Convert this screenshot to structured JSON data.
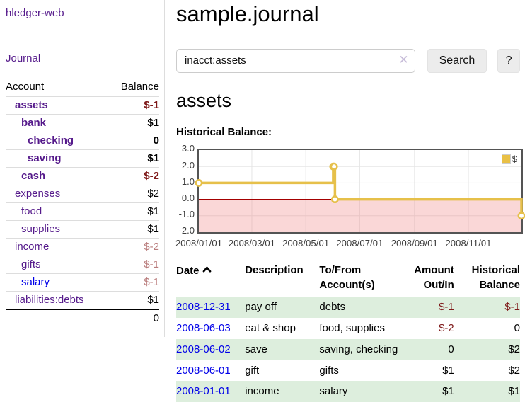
{
  "app": {
    "brand": "hledger-web",
    "nav": {
      "journal": "Journal"
    }
  },
  "colors": {
    "link_purple": "#551a8b",
    "link_blue": "#0000e8",
    "negative_strong": "#7e1919",
    "negative_muted": "#b97c7c",
    "row_green": "#ddeedd",
    "chart_line": "#e6c04a",
    "chart_negative_fill": "rgba(240,140,140,0.35)",
    "chart_zero_line": "#a40000",
    "grid_line": "#e5e5e5"
  },
  "sidebar": {
    "headers": {
      "account": "Account",
      "balance": "Balance"
    },
    "rows": [
      {
        "account": "assets",
        "balance": "$-1",
        "level": 1,
        "bold": true,
        "link_color": "purple",
        "balance_style": "neg-strong"
      },
      {
        "account": "bank",
        "balance": "$1",
        "level": 2,
        "bold": true,
        "link_color": "purple",
        "balance_style": "normal"
      },
      {
        "account": "checking",
        "balance": "0",
        "level": 3,
        "bold": true,
        "link_color": "purple",
        "balance_style": "normal"
      },
      {
        "account": "saving",
        "balance": "$1",
        "level": 3,
        "bold": true,
        "link_color": "purple",
        "balance_style": "normal"
      },
      {
        "account": "cash",
        "balance": "$-2",
        "level": 2,
        "bold": true,
        "link_color": "purple",
        "balance_style": "neg-strong"
      },
      {
        "account": "expenses",
        "balance": "$2",
        "level": 1,
        "bold": false,
        "link_color": "purple",
        "balance_style": "normal"
      },
      {
        "account": "food",
        "balance": "$1",
        "level": 2,
        "bold": false,
        "link_color": "purple",
        "balance_style": "normal"
      },
      {
        "account": "supplies",
        "balance": "$1",
        "level": 2,
        "bold": false,
        "link_color": "purple",
        "balance_style": "normal"
      },
      {
        "account": "income",
        "balance": "$-2",
        "level": 1,
        "bold": false,
        "link_color": "purple",
        "balance_style": "neg-muted"
      },
      {
        "account": "gifts",
        "balance": "$-1",
        "level": 2,
        "bold": false,
        "link_color": "purple",
        "balance_style": "neg-muted"
      },
      {
        "account": "salary",
        "balance": "$-1",
        "level": 2,
        "bold": false,
        "link_color": "blue",
        "balance_style": "neg-muted"
      },
      {
        "account": "liabilities:debts",
        "balance": "$1",
        "level": 1,
        "bold": false,
        "link_color": "purple",
        "balance_style": "normal"
      }
    ],
    "total": "0"
  },
  "main": {
    "title": "sample.journal",
    "search": {
      "value": "inacct:assets",
      "clear_icon": "x",
      "search_button": "Search",
      "help_button": "?"
    },
    "account_heading": "assets",
    "chart_heading": "Historical Balance:"
  },
  "chart_data": {
    "type": "line",
    "title": "Historical Balance:",
    "step": true,
    "legend": [
      {
        "label": "$",
        "color": "#e9c045"
      }
    ],
    "legend_position": "top-right",
    "grid": true,
    "ylim": [
      -2.0,
      3.0
    ],
    "yticks": [
      "3.0",
      "2.0",
      "1.0",
      "0.0",
      "-1.0",
      "-2.0"
    ],
    "ytick_values": [
      3,
      2,
      1,
      0,
      -1,
      -2
    ],
    "xticks": [
      "2008/01/01",
      "2008/03/01",
      "2008/05/01",
      "2008/07/01",
      "2008/09/01",
      "2008/11/01"
    ],
    "xtick_dates": [
      "2008-01-01",
      "2008-03-01",
      "2008-05-01",
      "2008-07-01",
      "2008-09-01",
      "2008-11-01"
    ],
    "x_range": [
      "2008-01-01",
      "2008-12-31"
    ],
    "series": [
      {
        "name": "$",
        "points": [
          {
            "date": "2008-01-01",
            "value": 1
          },
          {
            "date": "2008-06-01",
            "value": 2
          },
          {
            "date": "2008-06-02",
            "value": 2
          },
          {
            "date": "2008-06-03",
            "value": 0
          },
          {
            "date": "2008-12-31",
            "value": -1
          }
        ]
      }
    ],
    "negative_region": {
      "from": -2,
      "to": 0
    }
  },
  "register": {
    "headers": {
      "date": "Date",
      "description": "Description",
      "accounts": "To/From Account(s)",
      "amount": "Amount Out/In",
      "balance": "Historical Balance",
      "date_sort_icon": "chevron-up-icon"
    },
    "rows": [
      {
        "date": "2008-12-31",
        "description": "pay off",
        "accounts": "debts",
        "amount": "$-1",
        "amount_negative": true,
        "balance": "$-1",
        "balance_negative": true
      },
      {
        "date": "2008-06-03",
        "description": "eat & shop",
        "accounts": "food, supplies",
        "amount": "$-2",
        "amount_negative": true,
        "balance": "0",
        "balance_negative": false
      },
      {
        "date": "2008-06-02",
        "description": "save",
        "accounts": "saving, checking",
        "amount": "0",
        "amount_negative": false,
        "balance": "$2",
        "balance_negative": false
      },
      {
        "date": "2008-06-01",
        "description": "gift",
        "accounts": "gifts",
        "amount": "$1",
        "amount_negative": false,
        "balance": "$2",
        "balance_negative": false
      },
      {
        "date": "2008-01-01",
        "description": "income",
        "accounts": "salary",
        "amount": "$1",
        "amount_negative": false,
        "balance": "$1",
        "balance_negative": false
      }
    ]
  }
}
